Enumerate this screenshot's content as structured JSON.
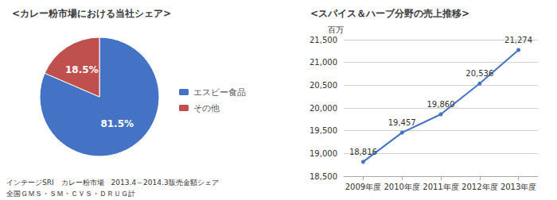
{
  "chart_data": [
    {
      "type": "pie",
      "title": "<カレー粉市場における当社シェア>",
      "categories": [
        "エスビー食品",
        "その他"
      ],
      "values": [
        81.5,
        18.5
      ],
      "value_labels": [
        "81.5%",
        "18.5%"
      ],
      "colors": [
        "#4472C4",
        "#C0504D"
      ],
      "data_labels": true,
      "legend": "right",
      "annotations": [
        "インテージSRI　カレー粉市場　2013.4～2014.3販売金額シェア",
        "全国ＧＭＳ・ＳＭ・ＣＶＳ・ＤＲＵＧ計"
      ]
    },
    {
      "type": "line",
      "title": "<スパイス＆ハーブ分野の売上推移>",
      "ylabel": "百万",
      "categories": [
        "2009年度",
        "2010年度",
        "2011年度",
        "2012年度",
        "2013年度"
      ],
      "values": [
        18816,
        19457,
        19860,
        20536,
        21274
      ],
      "value_labels": [
        "18,816",
        "19,457",
        "19,860",
        "20,536",
        "21,274"
      ],
      "data_labels": true,
      "color": "#4472C4",
      "marker": "circle",
      "ylim": [
        18500,
        21500
      ],
      "yticks": [
        {
          "value": 18500,
          "label": "18,500"
        },
        {
          "value": 19000,
          "label": "19,000"
        },
        {
          "value": 19500,
          "label": "19,500"
        },
        {
          "value": 20000,
          "label": "20,000"
        },
        {
          "value": 20500,
          "label": "20,500"
        },
        {
          "value": 21000,
          "label": "21,000"
        },
        {
          "value": 21500,
          "label": "21,500"
        }
      ],
      "grid": true
    }
  ]
}
